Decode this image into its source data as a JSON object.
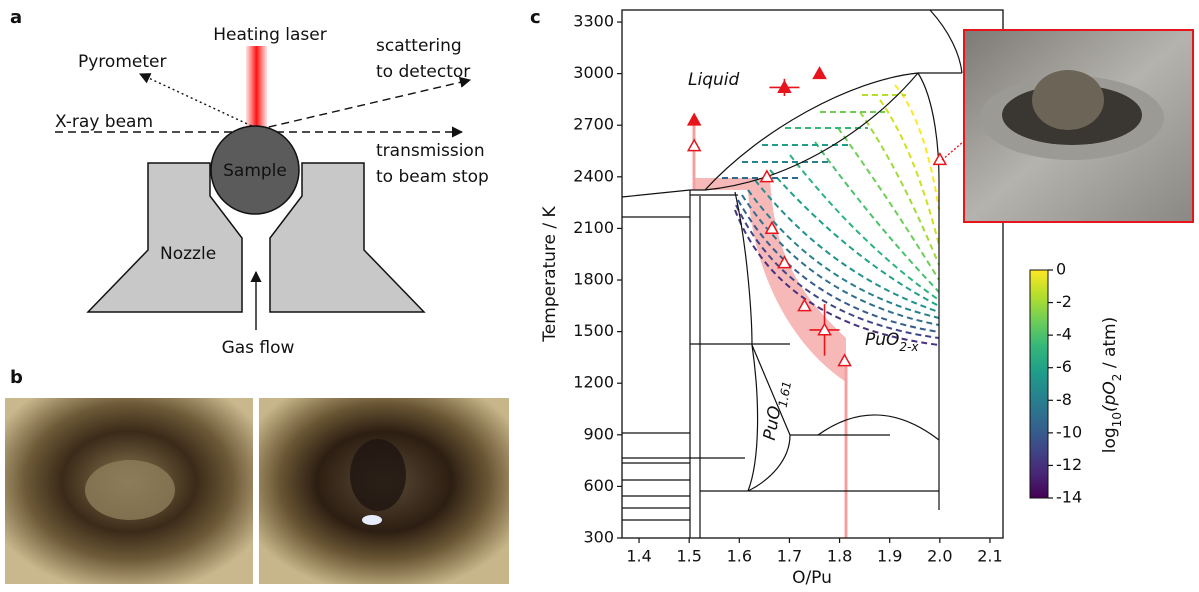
{
  "panel_a": {
    "label": "a",
    "heating_laser": "Heating laser",
    "pyrometer": "Pyrometer",
    "scattering": [
      "scattering",
      "to detector"
    ],
    "xray_beam": "X-ray beam",
    "transmission": [
      "transmission",
      "to beam stop"
    ],
    "sample": "Sample",
    "nozzle": "Nozzle",
    "gas_flow": "Gas flow"
  },
  "panel_b": {
    "label": "b"
  },
  "panel_c": {
    "label": "c"
  },
  "chart_data": {
    "type": "scatter",
    "xlabel": "O/Pu",
    "ylabel": "Temperature / K",
    "xlim": [
      1.366,
      2.126
    ],
    "ylim": [
      300,
      3370
    ],
    "xticks": [
      1.4,
      1.5,
      1.6,
      1.7,
      1.8,
      1.9,
      {
        "value": 2.0,
        "label": "2.0"
      },
      2.1
    ],
    "yticks": [
      300,
      600,
      900,
      1200,
      1500,
      1800,
      2100,
      2400,
      2700,
      3000,
      3300
    ],
    "series": [
      {
        "marker": "filled-triangle",
        "color": "#e8141c",
        "x": [
          1.51,
          1.69,
          1.76
        ],
        "y": [
          2730,
          2920,
          3000
        ],
        "x_err": [
          null,
          0.03,
          null
        ],
        "y_err": [
          null,
          50,
          null
        ]
      },
      {
        "marker": "open-triangle",
        "color": "#e8141c",
        "x": [
          1.51,
          1.655,
          1.665,
          1.69,
          1.73,
          1.77,
          1.81,
          2.0
        ],
        "y": [
          2580,
          2400,
          2100,
          1900,
          1650,
          1510,
          1330,
          2500
        ],
        "x_err": [
          null,
          null,
          null,
          null,
          null,
          0.03,
          null,
          null
        ],
        "y_err": [
          null,
          null,
          null,
          null,
          null,
          150,
          null,
          null
        ]
      }
    ],
    "annotations": [
      {
        "text": "Liquid"
      },
      {
        "text": "PuO",
        "sub": "2-x"
      },
      {
        "text": "PuO",
        "sub": "1.61"
      }
    ],
    "colorbar": {
      "lim": [
        -14,
        0
      ],
      "ticks": [
        0,
        -2,
        -4,
        -6,
        -8,
        -10,
        -12,
        -14
      ],
      "label": [
        {
          "text": "log",
          "sub": "10"
        },
        {
          "text": "(pO",
          "sub": "2"
        },
        {
          "text": " / atm)"
        }
      ],
      "colors": [
        "#440154",
        "#482878",
        "#3e4989",
        "#31688e",
        "#26828e",
        "#1f9e89",
        "#35b779",
        "#6ece58",
        "#b5de2b",
        "#fde725"
      ]
    }
  }
}
